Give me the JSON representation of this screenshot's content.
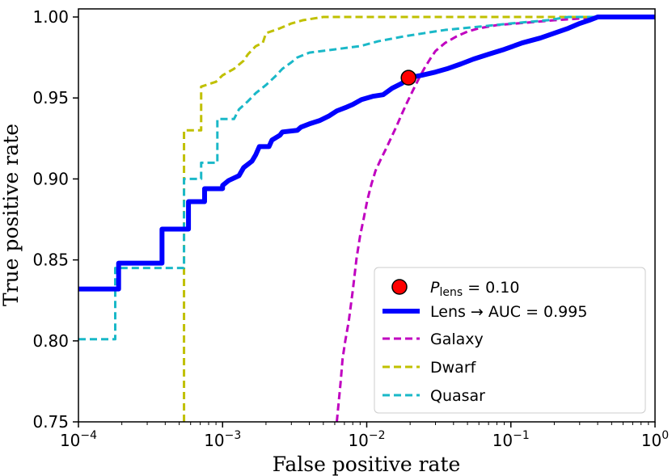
{
  "chart_data": {
    "type": "line",
    "xlabel": "False positive rate",
    "ylabel": "True positive rate",
    "xscale": "log",
    "xlim": [
      0.0001,
      1
    ],
    "ylim": [
      0.75,
      1.005
    ],
    "x_ticks": [
      {
        "value": 0.0001,
        "base": "10",
        "exp": "−4"
      },
      {
        "value": 0.001,
        "base": "10",
        "exp": "−3"
      },
      {
        "value": 0.01,
        "base": "10",
        "exp": "−2"
      },
      {
        "value": 0.1,
        "base": "10",
        "exp": "−1"
      },
      {
        "value": 1,
        "base": "10",
        "exp": "0"
      }
    ],
    "y_ticks": [
      "0.75",
      "0.80",
      "0.85",
      "0.90",
      "0.95",
      "1.00"
    ],
    "grid": false,
    "legend_placement": "lower-right",
    "marker_point": {
      "label_symbol": "P",
      "label_subscript": "lens",
      "label_value": "= 0.10",
      "x": 0.0195,
      "y": 0.9625,
      "color": "#ff0000"
    },
    "series": [
      {
        "name": "Lens → AUC = 0.995",
        "style": "solid",
        "color": "#0000ff",
        "width": 6,
        "points": [
          [
            0.0001,
            0.832
          ],
          [
            0.00019,
            0.832
          ],
          [
            0.00019,
            0.848
          ],
          [
            0.00038,
            0.848
          ],
          [
            0.00038,
            0.869
          ],
          [
            0.00058,
            0.869
          ],
          [
            0.00058,
            0.886
          ],
          [
            0.00075,
            0.886
          ],
          [
            0.00075,
            0.894
          ],
          [
            0.001,
            0.894
          ],
          [
            0.001,
            0.896
          ],
          [
            0.0011,
            0.899
          ],
          [
            0.0013,
            0.902
          ],
          [
            0.0014,
            0.907
          ],
          [
            0.0016,
            0.911
          ],
          [
            0.0017,
            0.915
          ],
          [
            0.0018,
            0.92
          ],
          [
            0.0021,
            0.92
          ],
          [
            0.0022,
            0.924
          ],
          [
            0.0025,
            0.927
          ],
          [
            0.0026,
            0.929
          ],
          [
            0.0033,
            0.93
          ],
          [
            0.0035,
            0.932
          ],
          [
            0.004,
            0.934
          ],
          [
            0.0047,
            0.936
          ],
          [
            0.0055,
            0.939
          ],
          [
            0.0062,
            0.942
          ],
          [
            0.0071,
            0.944
          ],
          [
            0.008,
            0.946
          ],
          [
            0.0092,
            0.949
          ],
          [
            0.011,
            0.951
          ],
          [
            0.013,
            0.952
          ],
          [
            0.015,
            0.956
          ],
          [
            0.0175,
            0.959
          ],
          [
            0.0195,
            0.9625
          ],
          [
            0.024,
            0.964
          ],
          [
            0.03,
            0.966
          ],
          [
            0.036,
            0.968
          ],
          [
            0.045,
            0.971
          ],
          [
            0.055,
            0.974
          ],
          [
            0.07,
            0.977
          ],
          [
            0.09,
            0.98
          ],
          [
            0.12,
            0.984
          ],
          [
            0.16,
            0.987
          ],
          [
            0.2,
            0.99
          ],
          [
            0.25,
            0.993
          ],
          [
            0.3,
            0.996
          ],
          [
            0.35,
            0.998
          ],
          [
            0.4,
            1.0
          ],
          [
            1,
            1.0
          ]
        ]
      },
      {
        "name": "Galaxy",
        "style": "dashed",
        "color": "#c000c0",
        "width": 3,
        "points": [
          [
            0.0062,
            0.75
          ],
          [
            0.0066,
            0.775
          ],
          [
            0.0068,
            0.789
          ],
          [
            0.0071,
            0.8
          ],
          [
            0.0075,
            0.812
          ],
          [
            0.008,
            0.831
          ],
          [
            0.0085,
            0.851
          ],
          [
            0.009,
            0.865
          ],
          [
            0.0095,
            0.875
          ],
          [
            0.0101,
            0.887
          ],
          [
            0.0108,
            0.897
          ],
          [
            0.0115,
            0.905
          ],
          [
            0.0125,
            0.912
          ],
          [
            0.0135,
            0.918
          ],
          [
            0.0147,
            0.925
          ],
          [
            0.016,
            0.932
          ],
          [
            0.0175,
            0.94
          ],
          [
            0.019,
            0.947
          ],
          [
            0.021,
            0.955
          ],
          [
            0.023,
            0.962
          ],
          [
            0.025,
            0.968
          ],
          [
            0.0275,
            0.974
          ],
          [
            0.03,
            0.979
          ],
          [
            0.035,
            0.984
          ],
          [
            0.042,
            0.988
          ],
          [
            0.05,
            0.991
          ],
          [
            0.06,
            0.993
          ],
          [
            0.08,
            0.995
          ],
          [
            0.11,
            0.996
          ],
          [
            0.15,
            0.997
          ],
          [
            0.2,
            0.998
          ],
          [
            0.3,
            0.999
          ],
          [
            0.4,
            1.0
          ],
          [
            1,
            1.0
          ]
        ]
      },
      {
        "name": "Dwarf",
        "style": "dashed",
        "color": "#c0c000",
        "width": 3,
        "points": [
          [
            0.00054,
            0.75
          ],
          [
            0.00054,
            0.93
          ],
          [
            0.00071,
            0.93
          ],
          [
            0.00071,
            0.957
          ],
          [
            0.0009,
            0.96
          ],
          [
            0.001,
            0.964
          ],
          [
            0.0012,
            0.968
          ],
          [
            0.0014,
            0.973
          ],
          [
            0.0015,
            0.977
          ],
          [
            0.0017,
            0.982
          ],
          [
            0.0019,
            0.984
          ],
          [
            0.002,
            0.99
          ],
          [
            0.0025,
            0.993
          ],
          [
            0.003,
            0.996
          ],
          [
            0.0036,
            0.998
          ],
          [
            0.005,
            1.0
          ],
          [
            1,
            1.0
          ]
        ]
      },
      {
        "name": "Quasar",
        "style": "dashed",
        "color": "#1ab8c8",
        "width": 3,
        "points": [
          [
            0.0001,
            0.801
          ],
          [
            0.00018,
            0.801
          ],
          [
            0.00018,
            0.845
          ],
          [
            0.00054,
            0.845
          ],
          [
            0.00054,
            0.9
          ],
          [
            0.00071,
            0.9
          ],
          [
            0.00071,
            0.91
          ],
          [
            0.00092,
            0.91
          ],
          [
            0.00092,
            0.937
          ],
          [
            0.0012,
            0.937
          ],
          [
            0.0013,
            0.943
          ],
          [
            0.0015,
            0.948
          ],
          [
            0.0017,
            0.953
          ],
          [
            0.002,
            0.958
          ],
          [
            0.0023,
            0.963
          ],
          [
            0.0026,
            0.968
          ],
          [
            0.003,
            0.972
          ],
          [
            0.0033,
            0.975
          ],
          [
            0.004,
            0.978
          ],
          [
            0.006,
            0.98
          ],
          [
            0.009,
            0.982
          ],
          [
            0.012,
            0.985
          ],
          [
            0.018,
            0.988
          ],
          [
            0.025,
            0.99
          ],
          [
            0.035,
            0.992
          ],
          [
            0.06,
            0.994
          ],
          [
            0.1,
            0.996
          ],
          [
            0.18,
            0.998
          ],
          [
            0.25,
            1.0
          ],
          [
            1,
            1.0
          ]
        ]
      }
    ]
  }
}
